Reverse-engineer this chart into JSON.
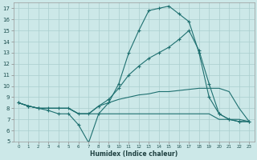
{
  "xlabel": "Humidex (Indice chaleur)",
  "background_color": "#cce8e8",
  "line_color": "#1e7070",
  "grid_color": "#aacece",
  "x_values": [
    0,
    1,
    2,
    3,
    4,
    5,
    6,
    7,
    8,
    9,
    10,
    11,
    12,
    13,
    14,
    15,
    16,
    17,
    18,
    19,
    20,
    21,
    22,
    23
  ],
  "series1_y": [
    8.5,
    8.2,
    8.0,
    7.8,
    7.5,
    7.5,
    6.5,
    4.9,
    7.5,
    8.5,
    10.2,
    13.0,
    15.0,
    16.8,
    17.0,
    17.2,
    16.5,
    15.8,
    13.0,
    9.0,
    7.5,
    7.0,
    6.8,
    6.8
  ],
  "series2_y": [
    8.5,
    8.2,
    8.0,
    8.0,
    8.0,
    8.0,
    7.5,
    7.5,
    8.2,
    8.8,
    9.8,
    11.0,
    11.8,
    12.5,
    13.0,
    13.5,
    14.2,
    15.0,
    13.2,
    10.2,
    7.5,
    7.0,
    6.8,
    6.8
  ],
  "series3_y": [
    8.5,
    8.2,
    8.0,
    8.0,
    8.0,
    8.0,
    7.5,
    7.5,
    8.2,
    8.5,
    8.8,
    9.0,
    9.2,
    9.3,
    9.5,
    9.5,
    9.6,
    9.7,
    9.8,
    9.8,
    9.8,
    9.5,
    8.0,
    6.8
  ],
  "series4_y": [
    8.5,
    8.2,
    8.0,
    8.0,
    8.0,
    8.0,
    7.5,
    7.5,
    7.5,
    7.5,
    7.5,
    7.5,
    7.5,
    7.5,
    7.5,
    7.5,
    7.5,
    7.5,
    7.5,
    7.5,
    7.0,
    7.0,
    7.0,
    6.8
  ],
  "ylim": [
    5,
    17.5
  ],
  "xlim": [
    -0.5,
    23.5
  ],
  "yticks": [
    5,
    6,
    7,
    8,
    9,
    10,
    11,
    12,
    13,
    14,
    15,
    16,
    17
  ],
  "xticks": [
    0,
    1,
    2,
    3,
    4,
    5,
    6,
    7,
    8,
    9,
    10,
    11,
    12,
    13,
    14,
    15,
    16,
    17,
    18,
    19,
    20,
    21,
    22,
    23
  ]
}
